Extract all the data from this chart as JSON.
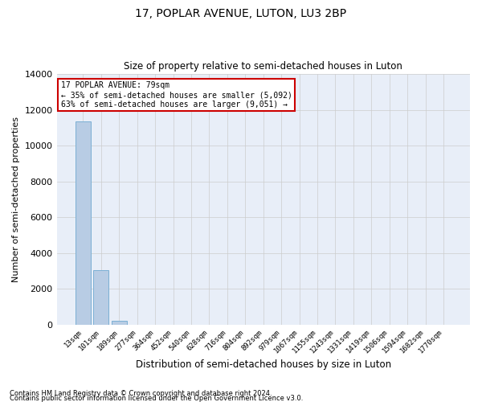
{
  "title": "17, POPLAR AVENUE, LUTON, LU3 2BP",
  "subtitle": "Size of property relative to semi-detached houses in Luton",
  "xlabel": "Distribution of semi-detached houses by size in Luton",
  "ylabel": "Number of semi-detached properties",
  "categories": [
    "13sqm",
    "101sqm",
    "189sqm",
    "277sqm",
    "364sqm",
    "452sqm",
    "540sqm",
    "628sqm",
    "716sqm",
    "804sqm",
    "892sqm",
    "979sqm",
    "1067sqm",
    "1155sqm",
    "1243sqm",
    "1331sqm",
    "1419sqm",
    "1506sqm",
    "1594sqm",
    "1682sqm",
    "1770sqm"
  ],
  "values": [
    11350,
    3050,
    200,
    0,
    0,
    0,
    0,
    0,
    0,
    0,
    0,
    0,
    0,
    0,
    0,
    0,
    0,
    0,
    0,
    0,
    0
  ],
  "bar_color": "#b8cce4",
  "bar_edge_color": "#7bafd4",
  "grid_color": "#cccccc",
  "annotation_line1": "17 POPLAR AVENUE: 79sqm",
  "annotation_line2": "← 35% of semi-detached houses are smaller (5,092)",
  "annotation_line3": "63% of semi-detached houses are larger (9,051) →",
  "annotation_box_color": "#ffffff",
  "annotation_edge_color": "#cc0000",
  "ylim": [
    0,
    14000
  ],
  "yticks": [
    0,
    2000,
    4000,
    6000,
    8000,
    10000,
    12000,
    14000
  ],
  "footnote1": "Contains HM Land Registry data © Crown copyright and database right 2024.",
  "footnote2": "Contains public sector information licensed under the Open Government Licence v3.0.",
  "bg_color": "#e8eef8",
  "fig_color": "#ffffff"
}
